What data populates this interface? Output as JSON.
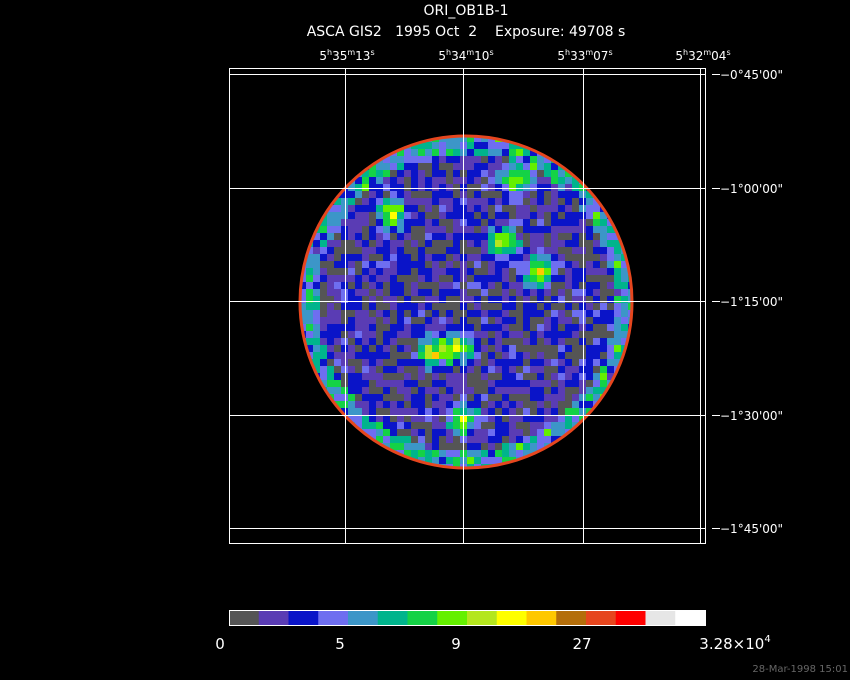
{
  "header": {
    "title": "ORI_OB1B-1",
    "subtitle": "ASCA GIS2   1995 Oct  2    Exposure: 49708 s"
  },
  "ra_labels": [
    [
      "5",
      "h",
      "35",
      "m",
      "13",
      "s"
    ],
    [
      "5",
      "h",
      "34",
      "m",
      "10",
      "s"
    ],
    [
      "5",
      "h",
      "33",
      "m",
      "07",
      "s"
    ],
    [
      "5",
      "h",
      "32",
      "m",
      "04",
      "s"
    ]
  ],
  "dec_labels": [
    "−0°45'00\"",
    "−1°00'00\"",
    "−1°15'00\"",
    "−1°30'00\"",
    "−1°45'00\""
  ],
  "colorbar": {
    "colors": [
      "#555555",
      "#5a3cb4",
      "#0a14c8",
      "#6e6ef0",
      "#3c96c8",
      "#00b48c",
      "#14d246",
      "#64f000",
      "#b4e61e",
      "#ffff00",
      "#ffc800",
      "#b46e0a",
      "#e6461e",
      "#ff0000",
      "#e6e6e6",
      "#ffffff"
    ],
    "labels": [
      [
        "0"
      ],
      [
        "5"
      ],
      [
        "9"
      ],
      [
        "27"
      ],
      [
        "3.28×10",
        "4"
      ]
    ]
  },
  "timestamp": "28-Mar-1998 15:01"
}
